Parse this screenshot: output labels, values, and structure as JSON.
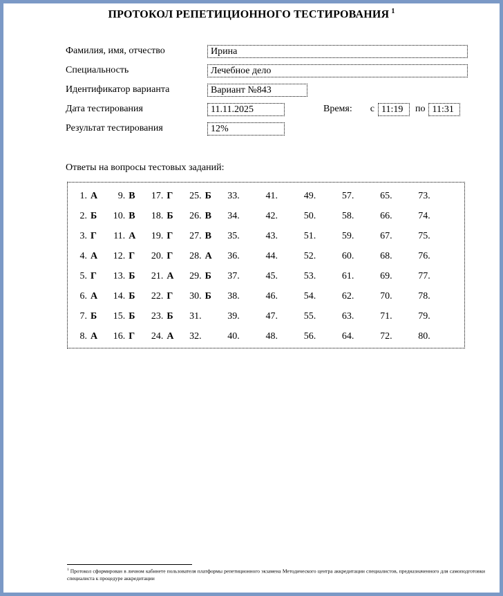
{
  "colors": {
    "page_border": "#7b99c6",
    "text": "#000000"
  },
  "header": {
    "title": "ПРОТОКОЛ РЕПЕТИЦИОННОГО ТЕСТИРОВАНИЯ",
    "title_footnote_ref": "1"
  },
  "form": {
    "fields": [
      {
        "label": "Фамилия, имя, отчество",
        "value": "Ирина"
      },
      {
        "label": "Специальность",
        "value": "Лечебное дело"
      },
      {
        "label": "Идентификатор варианта",
        "value": "Вариант №843"
      },
      {
        "label": "Дата тестирования",
        "value": "11.11.2025"
      },
      {
        "label": "Результат тестирования",
        "value": "12%"
      }
    ],
    "time": {
      "label": "Время:",
      "from_label": "с",
      "from_value": "11:19",
      "to_label": "по",
      "to_value": "11:31"
    }
  },
  "answers": {
    "heading": "Ответы на вопросы тестовых заданий:",
    "items": [
      {
        "num": "1.",
        "answer": "А"
      },
      {
        "num": "2.",
        "answer": "Б"
      },
      {
        "num": "3.",
        "answer": "Г"
      },
      {
        "num": "4.",
        "answer": "А"
      },
      {
        "num": "5.",
        "answer": "Г"
      },
      {
        "num": "6.",
        "answer": "А"
      },
      {
        "num": "7.",
        "answer": "Б"
      },
      {
        "num": "8.",
        "answer": "А"
      },
      {
        "num": "9.",
        "answer": "В"
      },
      {
        "num": "10.",
        "answer": "В"
      },
      {
        "num": "11.",
        "answer": "А"
      },
      {
        "num": "12.",
        "answer": "Г"
      },
      {
        "num": "13.",
        "answer": "Б"
      },
      {
        "num": "14.",
        "answer": "Б"
      },
      {
        "num": "15.",
        "answer": "Б"
      },
      {
        "num": "16.",
        "answer": "Г"
      },
      {
        "num": "17.",
        "answer": "Г"
      },
      {
        "num": "18.",
        "answer": "Б"
      },
      {
        "num": "19.",
        "answer": "Г"
      },
      {
        "num": "20.",
        "answer": "Г"
      },
      {
        "num": "21.",
        "answer": "А"
      },
      {
        "num": "22.",
        "answer": "Г"
      },
      {
        "num": "23.",
        "answer": "Б"
      },
      {
        "num": "24.",
        "answer": "А"
      },
      {
        "num": "25.",
        "answer": "Б"
      },
      {
        "num": "26.",
        "answer": "В"
      },
      {
        "num": "27.",
        "answer": "В"
      },
      {
        "num": "28.",
        "answer": "А"
      },
      {
        "num": "29.",
        "answer": "Б"
      },
      {
        "num": "30.",
        "answer": "Б"
      },
      {
        "num": "31.",
        "answer": ""
      },
      {
        "num": "32.",
        "answer": ""
      },
      {
        "num": "33.",
        "answer": ""
      },
      {
        "num": "34.",
        "answer": ""
      },
      {
        "num": "35.",
        "answer": ""
      },
      {
        "num": "36.",
        "answer": ""
      },
      {
        "num": "37.",
        "answer": ""
      },
      {
        "num": "38.",
        "answer": ""
      },
      {
        "num": "39.",
        "answer": ""
      },
      {
        "num": "40.",
        "answer": ""
      },
      {
        "num": "41.",
        "answer": ""
      },
      {
        "num": "42.",
        "answer": ""
      },
      {
        "num": "43.",
        "answer": ""
      },
      {
        "num": "44.",
        "answer": ""
      },
      {
        "num": "45.",
        "answer": ""
      },
      {
        "num": "46.",
        "answer": ""
      },
      {
        "num": "47.",
        "answer": ""
      },
      {
        "num": "48.",
        "answer": ""
      },
      {
        "num": "49.",
        "answer": ""
      },
      {
        "num": "50.",
        "answer": ""
      },
      {
        "num": "51.",
        "answer": ""
      },
      {
        "num": "52.",
        "answer": ""
      },
      {
        "num": "53.",
        "answer": ""
      },
      {
        "num": "54.",
        "answer": ""
      },
      {
        "num": "55.",
        "answer": ""
      },
      {
        "num": "56.",
        "answer": ""
      },
      {
        "num": "57.",
        "answer": ""
      },
      {
        "num": "58.",
        "answer": ""
      },
      {
        "num": "59.",
        "answer": ""
      },
      {
        "num": "60.",
        "answer": ""
      },
      {
        "num": "61.",
        "answer": ""
      },
      {
        "num": "62.",
        "answer": ""
      },
      {
        "num": "63.",
        "answer": ""
      },
      {
        "num": "64.",
        "answer": ""
      },
      {
        "num": "65.",
        "answer": ""
      },
      {
        "num": "66.",
        "answer": ""
      },
      {
        "num": "67.",
        "answer": ""
      },
      {
        "num": "68.",
        "answer": ""
      },
      {
        "num": "69.",
        "answer": ""
      },
      {
        "num": "70.",
        "answer": ""
      },
      {
        "num": "71.",
        "answer": ""
      },
      {
        "num": "72.",
        "answer": ""
      },
      {
        "num": "73.",
        "answer": ""
      },
      {
        "num": "74.",
        "answer": ""
      },
      {
        "num": "75.",
        "answer": ""
      },
      {
        "num": "76.",
        "answer": ""
      },
      {
        "num": "77.",
        "answer": ""
      },
      {
        "num": "78.",
        "answer": ""
      },
      {
        "num": "79.",
        "answer": ""
      },
      {
        "num": "80.",
        "answer": ""
      }
    ]
  },
  "footnote": {
    "marker": "1",
    "text": "Протокол сформирован в личном кабинете пользователя платформы репетиционного экзамена Методического центра аккредитации специалистов, предназначенного для самоподготовки специалиста к процедуре аккредитации"
  }
}
